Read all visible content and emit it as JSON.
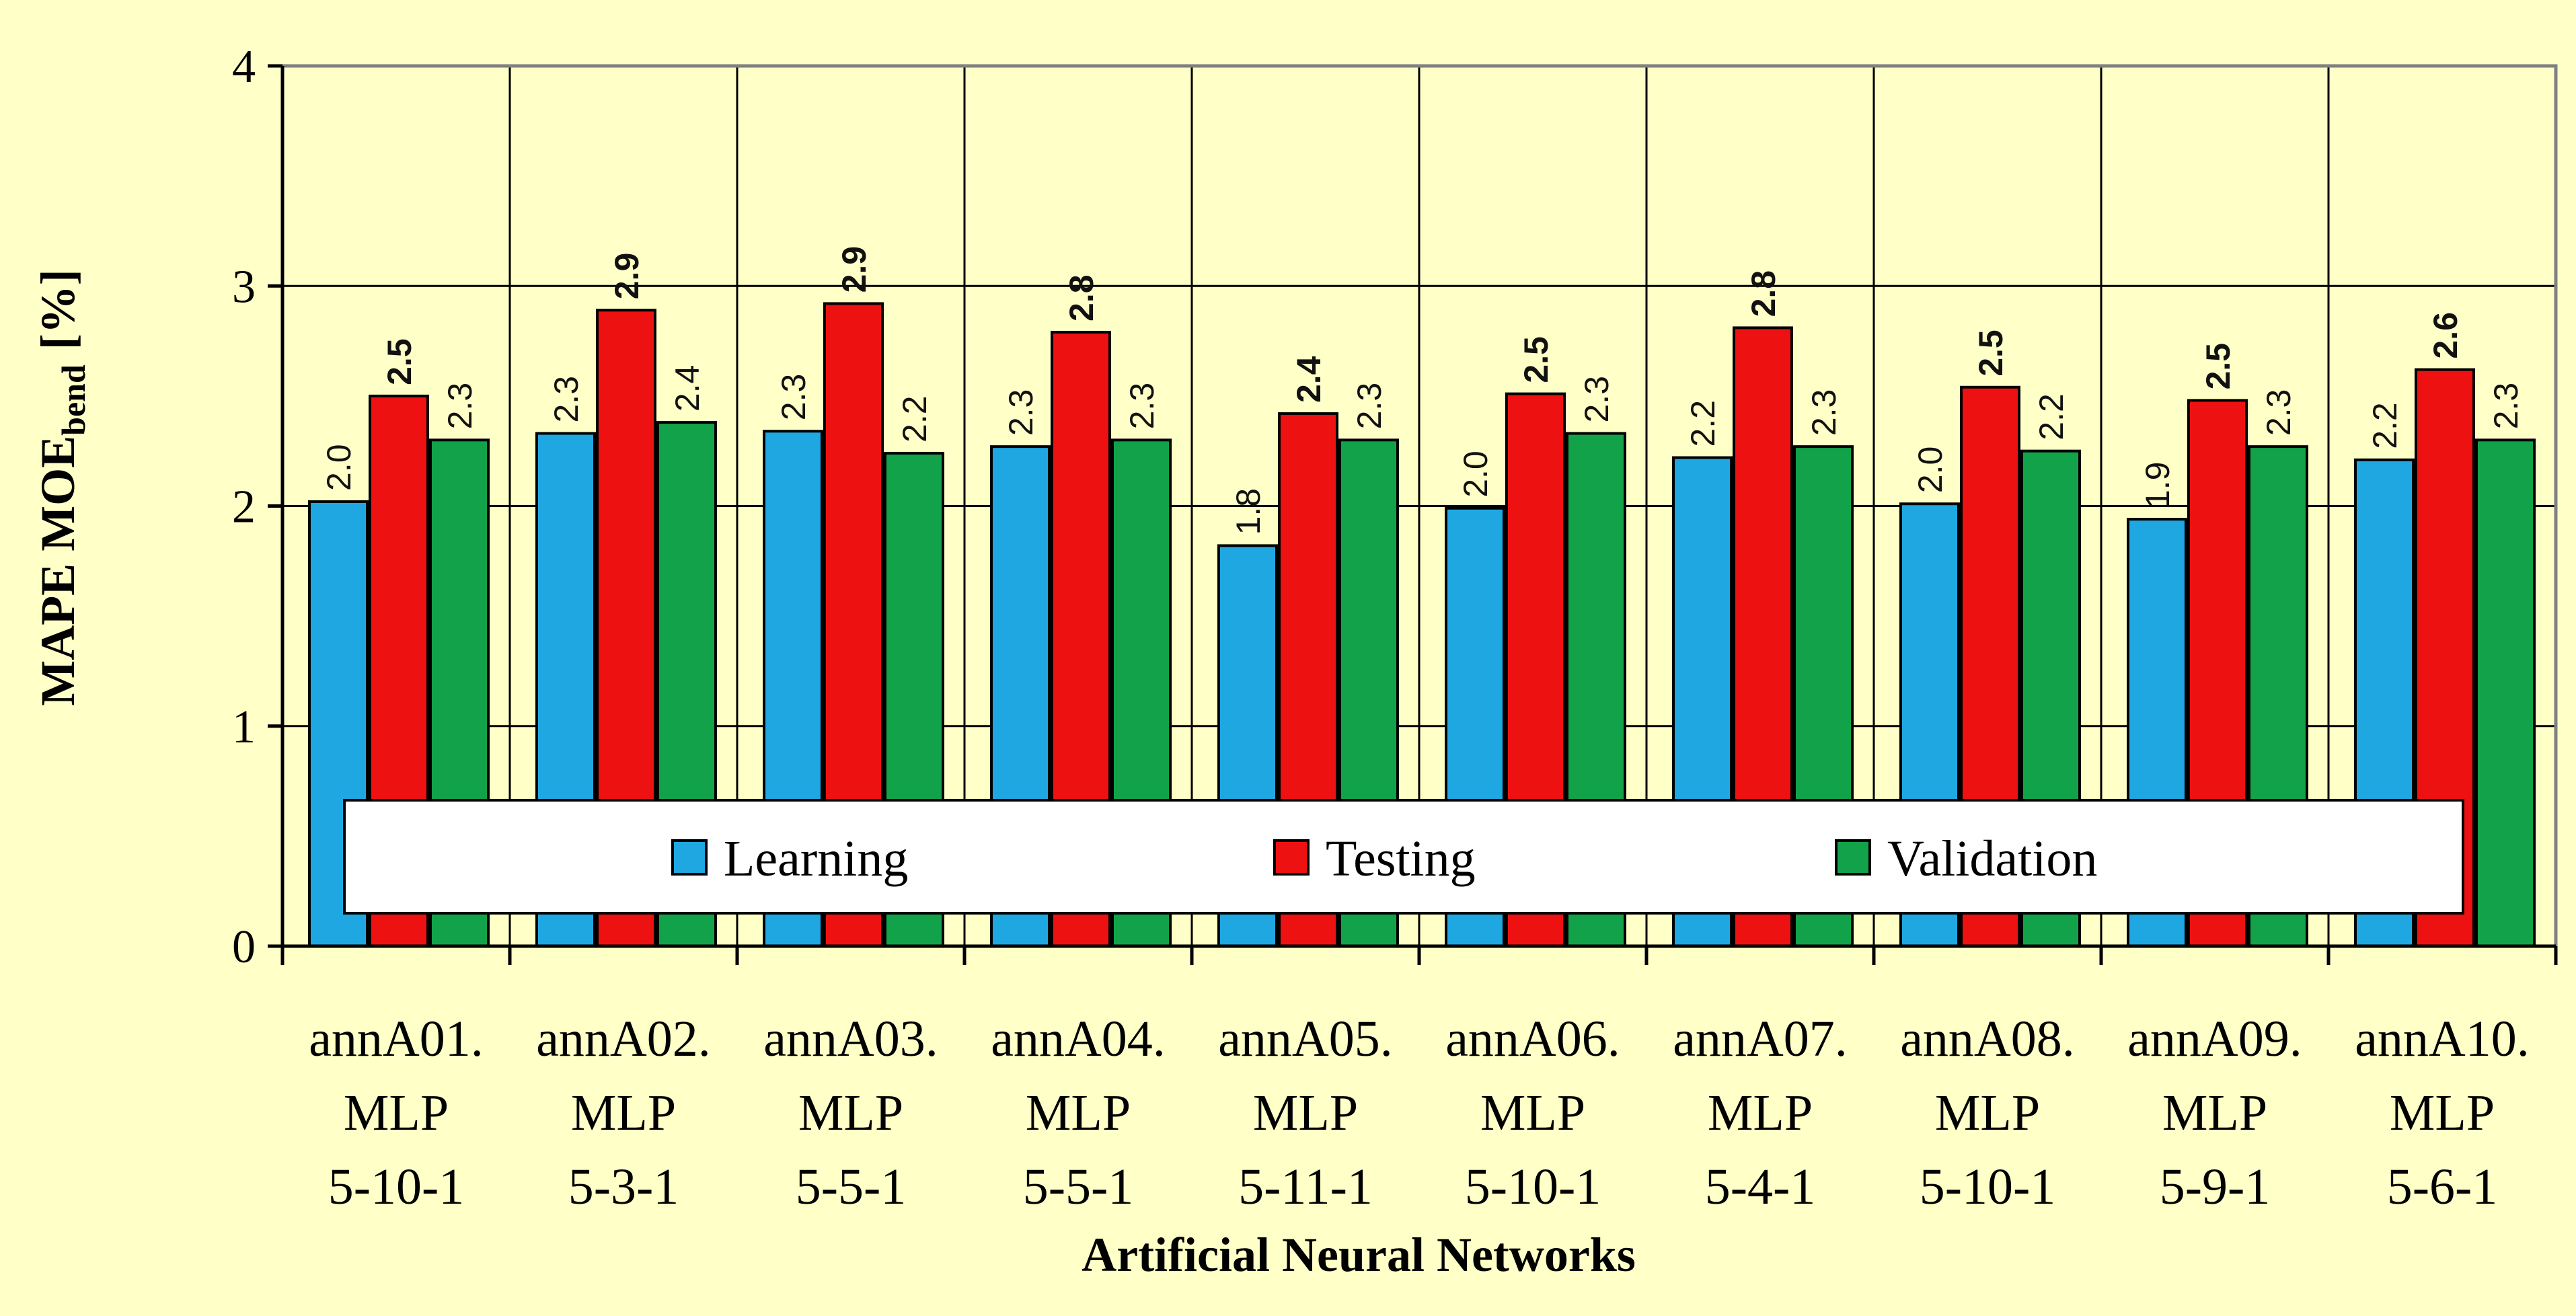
{
  "chart_data": {
    "type": "bar",
    "title": "",
    "xlabel": "Artificial Neural Networks",
    "ylabel": {
      "main": "MAPE MOE",
      "subscript": "bend",
      "unit": "[%]"
    },
    "ylim": [
      0,
      4
    ],
    "yticks": [
      "0",
      "1",
      "2",
      "3",
      "4"
    ],
    "grid": true,
    "legend_position": "bottom-inside",
    "categories": [
      [
        "annA01.",
        "MLP",
        "5-10-1"
      ],
      [
        "annA02.",
        "MLP",
        "5-3-1"
      ],
      [
        "annA03.",
        "MLP",
        "5-5-1"
      ],
      [
        "annA04.",
        "MLP",
        "5-5-1"
      ],
      [
        "annA05.",
        "MLP",
        "5-11-1"
      ],
      [
        "annA06.",
        "MLP",
        "5-10-1"
      ],
      [
        "annA07.",
        "MLP",
        "5-4-1"
      ],
      [
        "annA08.",
        "MLP",
        "5-10-1"
      ],
      [
        "annA09.",
        "MLP",
        "5-9-1"
      ],
      [
        "annA10.",
        "MLP",
        "5-6-1"
      ]
    ],
    "series": [
      {
        "name": "Learning",
        "color": "#1ea7e1",
        "bold_labels": false,
        "values": [
          2.02,
          2.33,
          2.34,
          2.27,
          1.82,
          1.99,
          2.22,
          2.01,
          1.94,
          2.21
        ],
        "labels": [
          "2.0",
          "2.3",
          "2.3",
          "2.3",
          "1.8",
          "2.0",
          "2.2",
          "2.0",
          "1.9",
          "2.2"
        ]
      },
      {
        "name": "Testing",
        "color": "#ee1111",
        "bold_labels": true,
        "values": [
          2.5,
          2.89,
          2.92,
          2.79,
          2.42,
          2.51,
          2.81,
          2.54,
          2.48,
          2.62
        ],
        "labels": [
          "2.5",
          "2.9",
          "2.9",
          "2.8",
          "2.4",
          "2.5",
          "2.8",
          "2.5",
          "2.5",
          "2.6"
        ]
      },
      {
        "name": "Validation",
        "color": "#12a34a",
        "bold_labels": false,
        "values": [
          2.3,
          2.38,
          2.24,
          2.3,
          2.3,
          2.33,
          2.27,
          2.25,
          2.27,
          2.3
        ],
        "labels": [
          "2.3",
          "2.4",
          "2.2",
          "2.3",
          "2.3",
          "2.3",
          "2.3",
          "2.2",
          "2.3",
          "2.3"
        ]
      }
    ]
  }
}
